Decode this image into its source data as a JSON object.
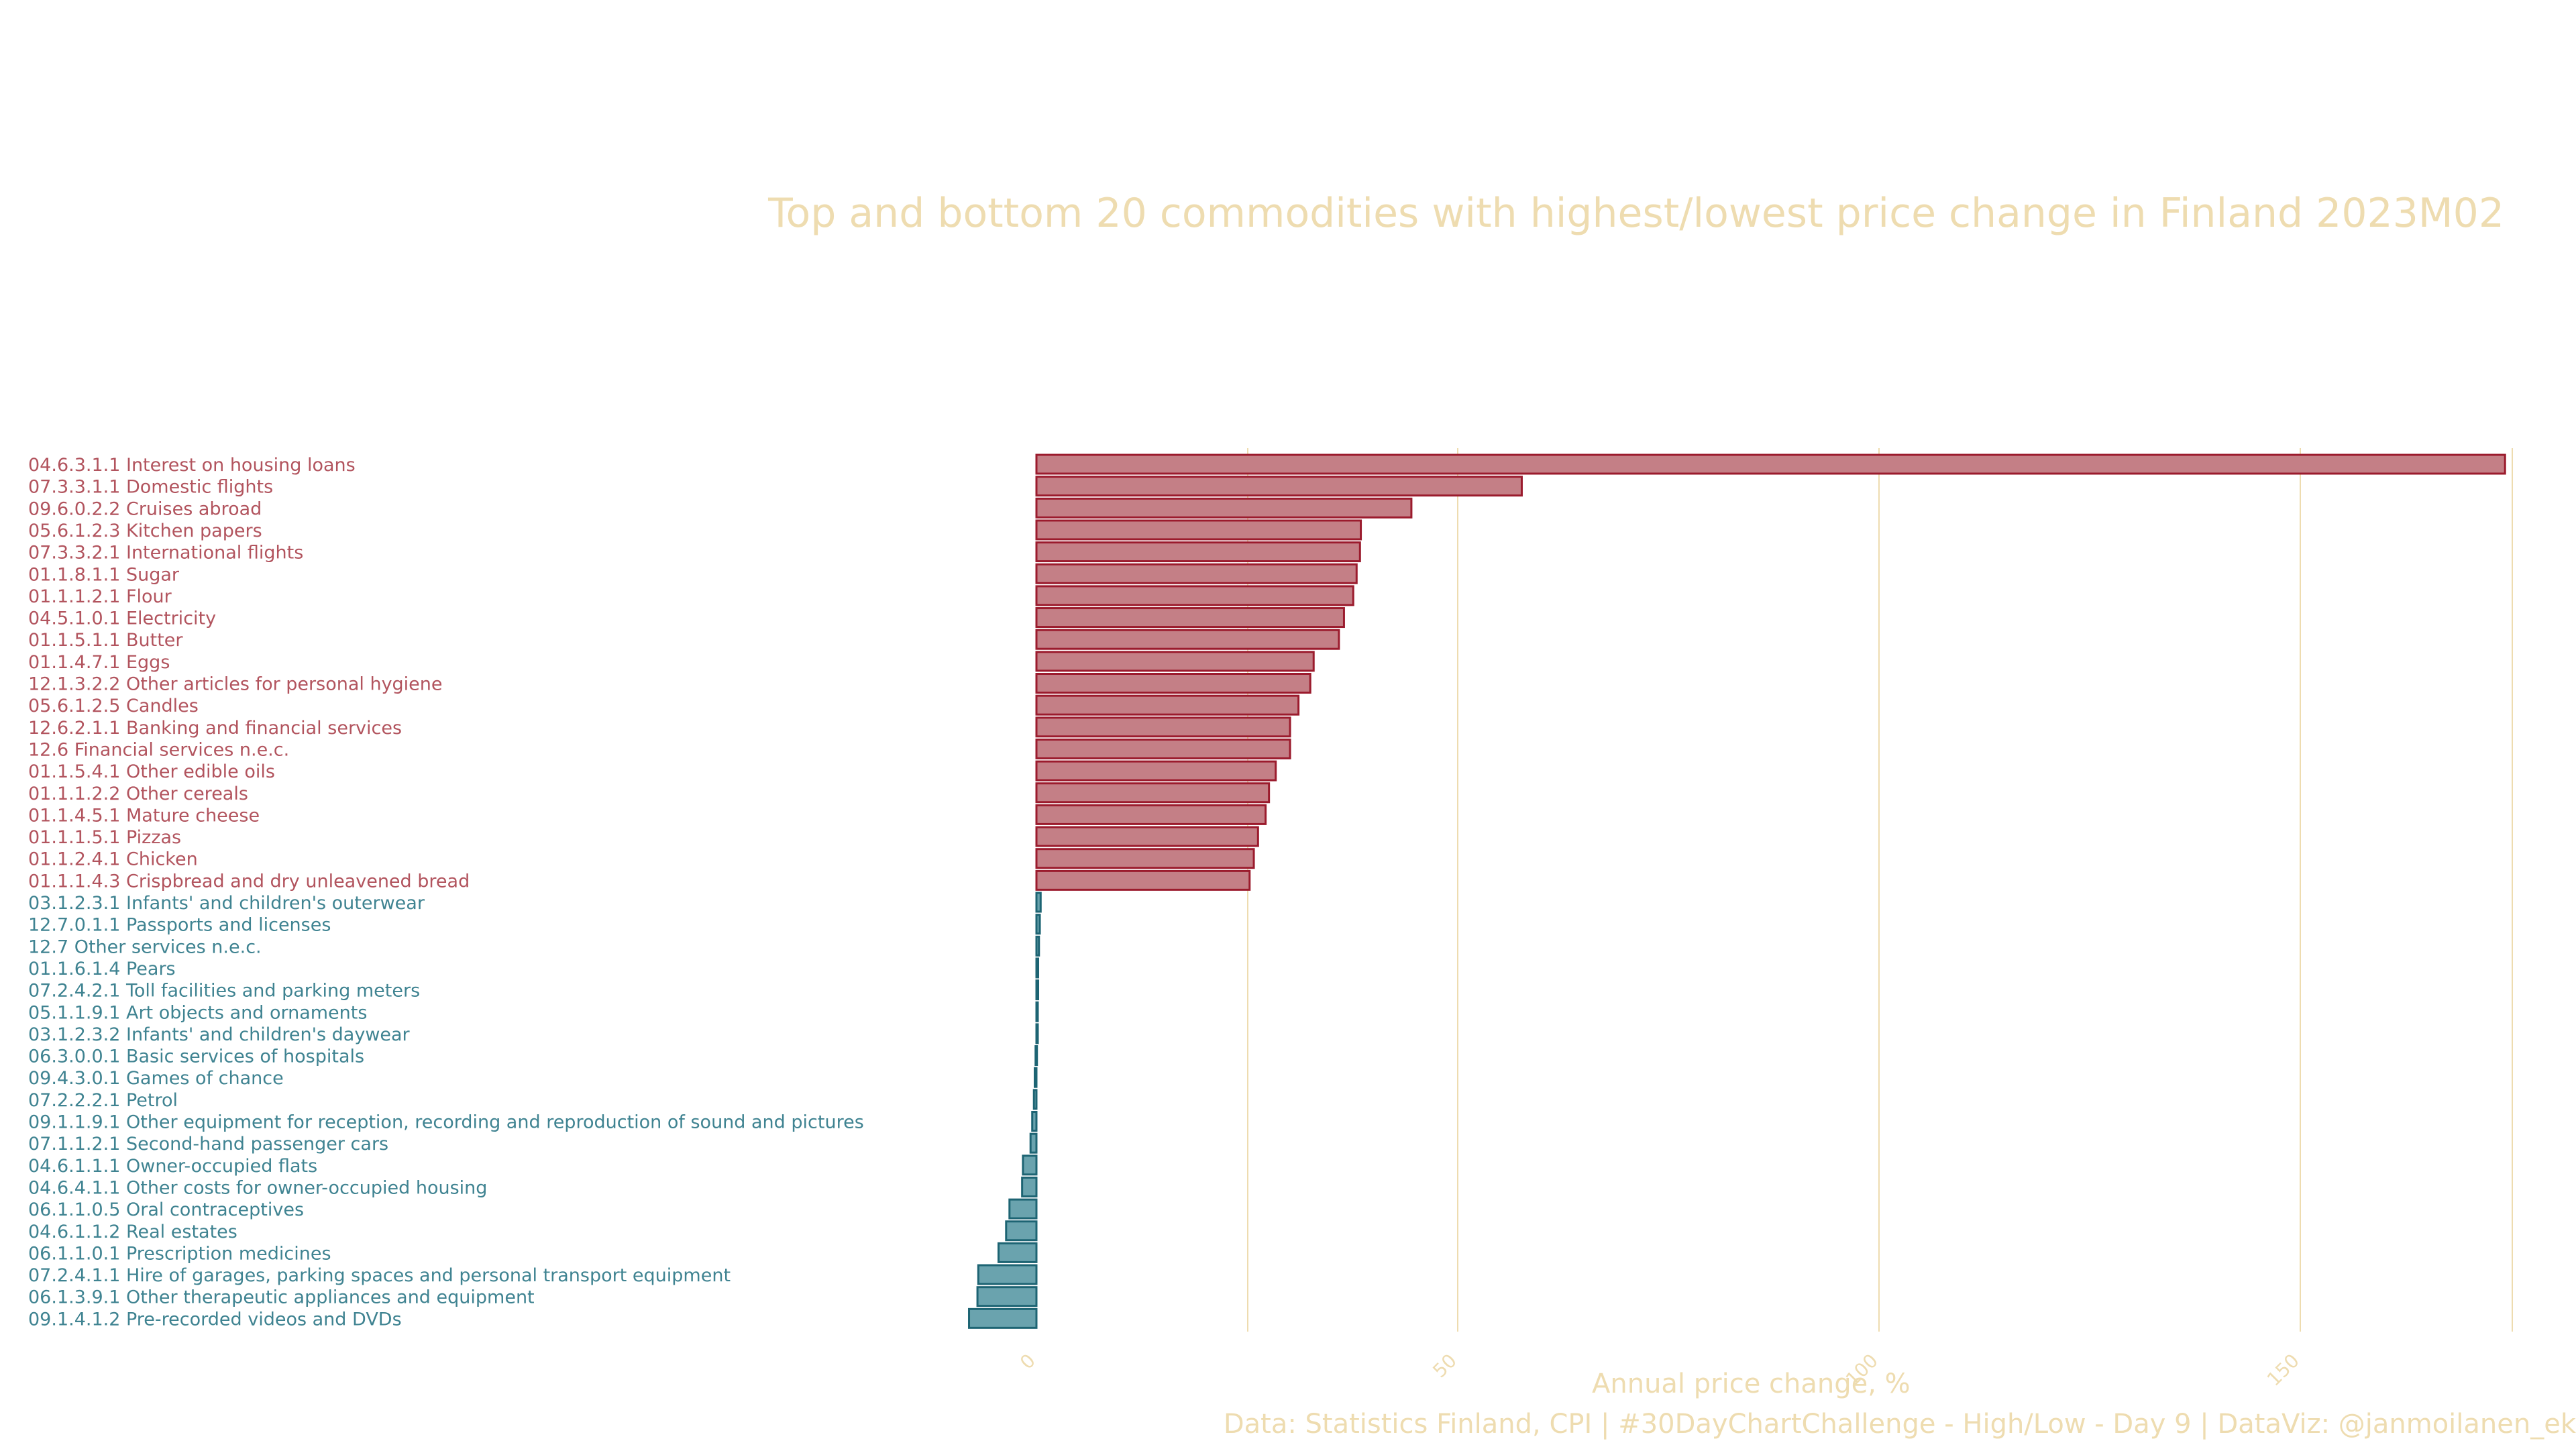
{
  "chart_data": {
    "type": "bar",
    "orientation": "horizontal",
    "title": "Top and bottom 20 commodities with highest/lowest price change in Finland 2023M02",
    "xlabel": "Annual price change, %",
    "caption": "Data: Statistics Finland, CPI   |   #30DayChartChallenge - High/Low - Day 9   |   DataViz: @janmoilanen_ek",
    "xlim": [
      -8,
      175
    ],
    "xticks": [
      0,
      50,
      100,
      150
    ],
    "tick_labels": [
      "0",
      "50",
      "100",
      "150"
    ],
    "grid": true,
    "colors": {
      "top_fill": "#c47f86",
      "top_stroke": "#9b1b2d",
      "top_text": "#b2545e",
      "bottom_fill": "#6aa3ae",
      "bottom_stroke": "#1d6473",
      "bottom_text": "#3f8391",
      "grid": "#eedcb0",
      "text_light": "#eedcb0"
    },
    "categories": [
      "04.6.3.1.1 Interest on housing loans",
      "07.3.3.1.1 Domestic flights",
      "09.6.0.2.2 Cruises abroad",
      "05.6.1.2.3 Kitchen papers",
      "07.3.3.2.1 International flights",
      "01.1.8.1.1 Sugar",
      "01.1.1.2.1 Flour",
      "04.5.1.0.1 Electricity",
      "01.1.5.1.1 Butter",
      "01.1.4.7.1 Eggs",
      "12.1.3.2.2 Other articles for personal hygiene",
      "05.6.1.2.5 Candles",
      "12.6.2.1.1 Banking and financial services",
      "12.6 Financial services n.e.c.",
      "01.1.5.4.1 Other edible oils",
      "01.1.1.2.2 Other cereals",
      "01.1.4.5.1 Mature cheese",
      "01.1.1.5.1 Pizzas",
      "01.1.2.4.1 Chicken",
      "01.1.1.4.3 Crispbread and dry unleavened bread",
      "03.1.2.3.1 Infants' and children's outerwear",
      "12.7.0.1.1 Passports and licenses",
      "12.7 Other services n.e.c.",
      "01.1.6.1.4 Pears",
      "07.2.4.2.1 Toll facilities and parking meters",
      "05.1.1.9.1 Art objects and ornaments",
      "03.1.2.3.2 Infants' and children's daywear",
      "06.3.0.0.1 Basic services of hospitals",
      "09.4.3.0.1 Games of chance",
      "07.2.2.2.1 Petrol",
      "09.1.1.9.1 Other equipment for reception, recording and reproduction of sound and pictures",
      "07.1.1.2.1 Second-hand passenger cars",
      "04.6.1.1.1 Owner-occupied flats",
      "04.6.4.1.1 Other costs for owner-occupied housing",
      "06.1.1.0.5 Oral contraceptives",
      "04.6.1.1.2 Real estates",
      "06.1.1.0.1 Prescription medicines",
      "07.2.4.1.1 Hire of garages, parking spaces and personal transport equipment",
      "06.1.3.9.1 Other therapeutic appliances and equipment",
      "09.1.4.1.2 Pre-recorded videos and DVDs"
    ],
    "values": [
      174.3,
      57.6,
      44.5,
      38.5,
      38.4,
      38.0,
      37.6,
      36.5,
      35.9,
      32.9,
      32.5,
      31.1,
      30.1,
      30.1,
      28.4,
      27.6,
      27.2,
      26.3,
      25.8,
      25.3,
      0.5,
      0.4,
      0.3,
      0.2,
      0.2,
      0.1,
      0.0,
      -0.1,
      -0.2,
      -0.3,
      -0.5,
      -0.7,
      -1.6,
      -1.7,
      -3.2,
      -3.6,
      -4.5,
      -6.9,
      -7.0,
      -8.0
    ],
    "groups": [
      "top",
      "top",
      "top",
      "top",
      "top",
      "top",
      "top",
      "top",
      "top",
      "top",
      "top",
      "top",
      "top",
      "top",
      "top",
      "top",
      "top",
      "top",
      "top",
      "top",
      "bottom",
      "bottom",
      "bottom",
      "bottom",
      "bottom",
      "bottom",
      "bottom",
      "bottom",
      "bottom",
      "bottom",
      "bottom",
      "bottom",
      "bottom",
      "bottom",
      "bottom",
      "bottom",
      "bottom",
      "bottom",
      "bottom",
      "bottom"
    ]
  }
}
